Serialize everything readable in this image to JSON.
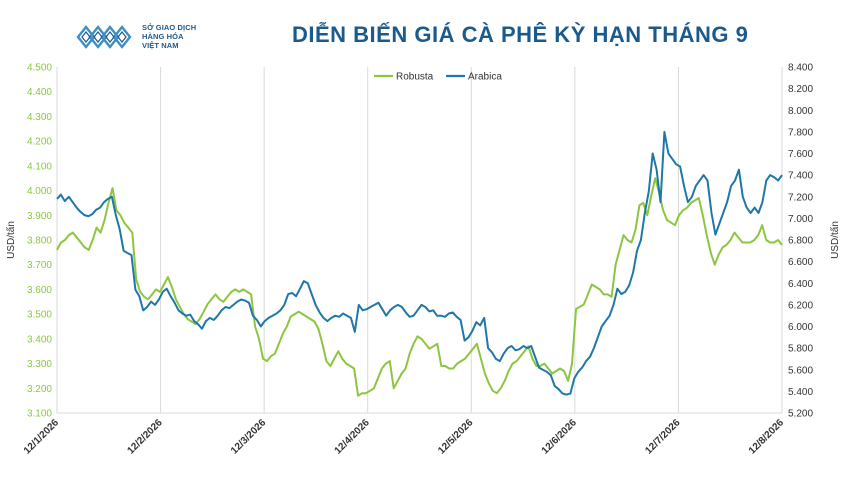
{
  "header": {
    "logo_lines": [
      "SỞ GIAO DỊCH",
      "HÀNG HÓA",
      "VIỆT NAM"
    ],
    "title": "DIỄN BIẾN GIÁ CÀ PHÊ KỲ HẠN THÁNG 9"
  },
  "chart_data": {
    "type": "line",
    "title": "DIỄN BIẾN GIÁ CÀ PHÊ KỲ HẠN THÁNG 9",
    "ylabel_left": "USD/tấn",
    "ylabel_right": "USD/tấn",
    "yleft_lim": [
      3100,
      4500
    ],
    "yleft_ticks": [
      "3.100",
      "3.200",
      "3.300",
      "3.400",
      "3.500",
      "3.600",
      "3.700",
      "3.800",
      "3.900",
      "4.000",
      "4.100",
      "4.200",
      "4.300",
      "4.400",
      "4.500"
    ],
    "yright_lim": [
      5200,
      8400
    ],
    "yright_ticks": [
      "5.200",
      "5.400",
      "5.600",
      "5.800",
      "6.000",
      "6.200",
      "6.400",
      "6.600",
      "6.800",
      "7.000",
      "7.200",
      "7.400",
      "7.600",
      "7.800",
      "8.000",
      "8.200",
      "8.400"
    ],
    "x_ticks": [
      "12/1/2026",
      "12/2/2026",
      "12/3/2026",
      "12/4/2026",
      "12/5/2026",
      "12/6/2026",
      "12/7/2026",
      "12/8/2026"
    ],
    "grid": "vertical",
    "legend_position": "top-center",
    "colors": {
      "Robusta": "#8cc63f",
      "Arabica": "#1f77a8",
      "left_axis_text": "#8cc63f",
      "right_axis_text": "#333333"
    },
    "series": [
      {
        "name": "Robusta",
        "axis": "left",
        "values": [
          3760,
          3790,
          3800,
          3820,
          3830,
          3810,
          3790,
          3770,
          3760,
          3800,
          3850,
          3830,
          3880,
          3950,
          4010,
          3920,
          3900,
          3870,
          3850,
          3830,
          3640,
          3590,
          3570,
          3560,
          3580,
          3600,
          3590,
          3620,
          3650,
          3610,
          3560,
          3530,
          3500,
          3480,
          3470,
          3460,
          3480,
          3510,
          3540,
          3560,
          3580,
          3560,
          3550,
          3570,
          3590,
          3600,
          3590,
          3600,
          3590,
          3580,
          3450,
          3400,
          3320,
          3310,
          3330,
          3340,
          3380,
          3420,
          3450,
          3490,
          3500,
          3510,
          3500,
          3490,
          3480,
          3470,
          3440,
          3380,
          3310,
          3290,
          3320,
          3350,
          3320,
          3300,
          3290,
          3280,
          3170,
          3180,
          3180,
          3190,
          3200,
          3240,
          3280,
          3300,
          3310,
          3200,
          3230,
          3260,
          3280,
          3340,
          3380,
          3410,
          3400,
          3380,
          3360,
          3370,
          3380,
          3290,
          3290,
          3280,
          3280,
          3300,
          3310,
          3320,
          3340,
          3360,
          3380,
          3320,
          3260,
          3220,
          3190,
          3180,
          3200,
          3230,
          3270,
          3300,
          3310,
          3330,
          3350,
          3370,
          3320,
          3290,
          3290,
          3300,
          3280,
          3260,
          3270,
          3280,
          3270,
          3230,
          3300,
          3520,
          3530,
          3540,
          3580,
          3620,
          3610,
          3600,
          3580,
          3580,
          3570,
          3700,
          3760,
          3820,
          3800,
          3790,
          3840,
          3940,
          3950,
          3900,
          3980,
          4050,
          3990,
          3920,
          3880,
          3870,
          3860,
          3900,
          3920,
          3930,
          3950,
          3960,
          3970,
          3900,
          3820,
          3750,
          3700,
          3740,
          3770,
          3780,
          3800,
          3830,
          3810,
          3790,
          3790,
          3790,
          3800,
          3820,
          3860,
          3800,
          3790,
          3790,
          3800,
          3780
        ]
      },
      {
        "name": "Arabica",
        "axis": "right",
        "values": [
          7180,
          7220,
          7160,
          7200,
          7150,
          7100,
          7060,
          7030,
          7020,
          7040,
          7080,
          7100,
          7150,
          7180,
          7200,
          7030,
          6900,
          6700,
          6680,
          6660,
          6340,
          6280,
          6150,
          6180,
          6230,
          6200,
          6250,
          6320,
          6350,
          6280,
          6220,
          6150,
          6120,
          6100,
          6110,
          6050,
          6020,
          5980,
          6050,
          6080,
          6060,
          6100,
          6150,
          6180,
          6170,
          6200,
          6230,
          6250,
          6240,
          6220,
          6100,
          6060,
          6000,
          6050,
          6080,
          6100,
          6120,
          6150,
          6200,
          6300,
          6310,
          6280,
          6350,
          6420,
          6400,
          6300,
          6200,
          6130,
          6080,
          6050,
          6080,
          6100,
          6090,
          6120,
          6100,
          6080,
          5950,
          6200,
          6150,
          6160,
          6180,
          6200,
          6220,
          6160,
          6100,
          6150,
          6180,
          6200,
          6180,
          6130,
          6090,
          6100,
          6150,
          6200,
          6180,
          6140,
          6150,
          6100,
          6100,
          6090,
          6120,
          6130,
          6090,
          6060,
          5870,
          5900,
          5960,
          6040,
          6010,
          6080,
          5800,
          5760,
          5700,
          5680,
          5750,
          5800,
          5820,
          5780,
          5790,
          5820,
          5800,
          5820,
          5720,
          5620,
          5600,
          5580,
          5550,
          5450,
          5420,
          5380,
          5370,
          5380,
          5520,
          5580,
          5620,
          5680,
          5720,
          5800,
          5900,
          6000,
          6050,
          6100,
          6200,
          6350,
          6300,
          6320,
          6380,
          6500,
          6700,
          6800,
          7050,
          7250,
          7600,
          7450,
          7150,
          7800,
          7600,
          7550,
          7500,
          7480,
          7300,
          7150,
          7200,
          7300,
          7350,
          7400,
          7350,
          7050,
          6850,
          6950,
          7050,
          7150,
          7300,
          7350,
          7450,
          7200,
          7100,
          7050,
          7100,
          7050,
          7150,
          7350,
          7400,
          7380,
          7350,
          7400
        ]
      }
    ]
  }
}
